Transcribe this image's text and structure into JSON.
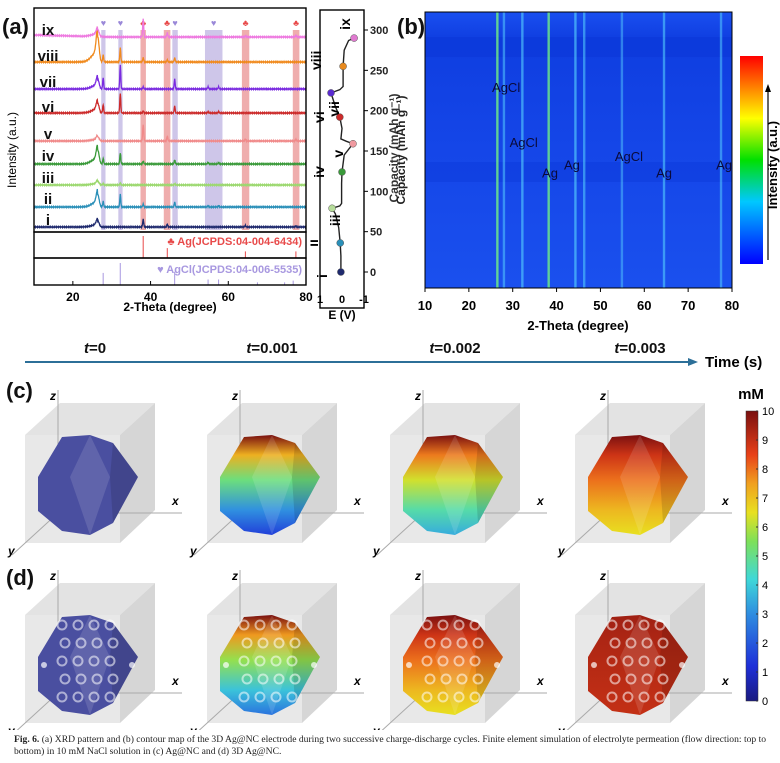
{
  "figure": {
    "panel_labels": {
      "a": "(a)",
      "b": "(b)",
      "c": "(c)",
      "d": "(d)"
    },
    "caption_label": "Fig. 6.",
    "caption_text": "(a) XRD pattern and (b) contour map of the 3D Ag@NC electrode during two successive charge-discharge cycles. Finite element simulation of electrolyte permeation (flow direction: top to bottom) in 10 mM NaCl solution in (c) Ag@NC and (d) 3D Ag@NC."
  },
  "colors": {
    "ag_highlight": "#e88a8a",
    "agcl_highlight": "#b9aee0",
    "timeline": "#2c6f98",
    "contour_bg": "#1544e6"
  },
  "chart_data": [
    {
      "type": "line",
      "panel": "a",
      "title": "",
      "xlabel": "2-Theta (degree)",
      "ylabel": "Intensity (a.u.)",
      "xlim": [
        10,
        80
      ],
      "xticks": [
        20,
        40,
        60,
        80
      ],
      "series": [
        {
          "name": "i",
          "color": "#1f2a6e",
          "peaks": [
            [
              26.4,
              0.45
            ],
            [
              38.1,
              0.55
            ],
            [
              44.3,
              0.2
            ],
            [
              64.4,
              0.1
            ],
            [
              77.4,
              0.08
            ]
          ]
        },
        {
          "name": "ii",
          "color": "#2a8fb8",
          "peaks": [
            [
              26.4,
              0.9
            ],
            [
              27.8,
              0.4
            ],
            [
              32.2,
              0.9
            ],
            [
              38.1,
              0.2
            ],
            [
              46.2,
              0.35
            ],
            [
              54.8,
              0.1
            ],
            [
              57.5,
              0.1
            ]
          ]
        },
        {
          "name": "iii",
          "color": "#9bd86e",
          "peaks": [
            [
              26.4,
              0.25
            ],
            [
              27.8,
              0.1
            ],
            [
              32.2,
              0.15
            ],
            [
              46.2,
              0.1
            ]
          ]
        },
        {
          "name": "iv",
          "color": "#3a9a3a",
          "peaks": [
            [
              26.4,
              1.0
            ],
            [
              27.8,
              0.4
            ],
            [
              32.2,
              0.8
            ],
            [
              38.1,
              0.2
            ],
            [
              46.2,
              0.3
            ],
            [
              54.8,
              0.1
            ],
            [
              57.5,
              0.1
            ]
          ]
        },
        {
          "name": "v",
          "color": "#f08a8a",
          "peaks": [
            [
              26.4,
              0.3
            ],
            [
              38.1,
              1.2
            ],
            [
              44.3,
              0.35
            ],
            [
              64.4,
              0.15
            ],
            [
              77.4,
              0.12
            ]
          ]
        },
        {
          "name": "vi",
          "color": "#cc2b2b",
          "peaks": [
            [
              26.4,
              0.7
            ],
            [
              27.8,
              0.6
            ],
            [
              32.2,
              1.4
            ],
            [
              38.1,
              0.15
            ],
            [
              46.2,
              0.5
            ],
            [
              54.8,
              0.1
            ],
            [
              57.5,
              0.1
            ]
          ]
        },
        {
          "name": "vii",
          "color": "#7a2be0",
          "peaks": [
            [
              26.4,
              0.7
            ],
            [
              27.8,
              0.8
            ],
            [
              32.2,
              1.7
            ],
            [
              38.1,
              0.15
            ],
            [
              46.2,
              0.7
            ],
            [
              54.8,
              0.15
            ],
            [
              57.5,
              0.15
            ]
          ]
        },
        {
          "name": "viii",
          "color": "#f08a1e",
          "peaks": [
            [
              26.4,
              1.8
            ],
            [
              27.8,
              0.5
            ],
            [
              32.2,
              1.0
            ],
            [
              38.1,
              0.3
            ],
            [
              44.3,
              0.15
            ],
            [
              46.2,
              0.3
            ]
          ]
        },
        {
          "name": "ix",
          "color": "#ee7ae0",
          "peaks": [
            [
              26.4,
              0.5
            ],
            [
              38.1,
              1.3
            ],
            [
              44.3,
              0.3
            ],
            [
              64.4,
              0.1
            ],
            [
              77.4,
              0.1
            ]
          ]
        }
      ],
      "highlight_bands": [
        {
          "phase": "AgCl",
          "x": [
            27.3,
            28.4
          ]
        },
        {
          "phase": "AgCl",
          "x": [
            31.7,
            32.8
          ]
        },
        {
          "phase": "Ag",
          "x": [
            37.4,
            38.8
          ]
        },
        {
          "phase": "Ag",
          "x": [
            43.4,
            45.1
          ]
        },
        {
          "phase": "AgCl",
          "x": [
            45.6,
            47.0
          ]
        },
        {
          "phase": "AgCl",
          "x": [
            54.0,
            58.5
          ]
        },
        {
          "phase": "Ag",
          "x": [
            63.5,
            65.4
          ]
        },
        {
          "phase": "Ag",
          "x": [
            76.6,
            78.3
          ]
        }
      ],
      "references": [
        {
          "label": "Ag(JCPDS:04-004-6434)",
          "symbol": "♣",
          "color": "#e84a4a",
          "lines": [
            [
              38.1,
              1.0
            ],
            [
              44.3,
              0.45
            ],
            [
              64.4,
              0.3
            ],
            [
              77.4,
              0.3
            ]
          ]
        },
        {
          "label": "AgCl(JCPDS:04-006-5535)",
          "symbol": "♥",
          "color": "#a898e0",
          "lines": [
            [
              27.8,
              0.55
            ],
            [
              32.2,
              1.0
            ],
            [
              46.2,
              0.6
            ],
            [
              54.8,
              0.25
            ],
            [
              57.5,
              0.25
            ],
            [
              67.5,
              0.12
            ],
            [
              74.5,
              0.12
            ],
            [
              76.7,
              0.2
            ]
          ]
        }
      ]
    },
    {
      "type": "line",
      "panel": "a-right",
      "xlabel": "E (V)",
      "ylabel": "Capacity (mAh g⁻¹)",
      "xlim": [
        1,
        -1
      ],
      "ylim": [
        -20,
        320
      ],
      "xticks": [
        1,
        0,
        -1
      ],
      "yticks": [
        0,
        50,
        100,
        150,
        200,
        250,
        300
      ],
      "curve": [
        [
          0.05,
          0
        ],
        [
          0.05,
          20
        ],
        [
          0.08,
          36
        ],
        [
          0.15,
          55
        ],
        [
          0.3,
          72
        ],
        [
          0.45,
          79
        ],
        [
          0.1,
          82
        ],
        [
          0.02,
          85
        ],
        [
          0.02,
          110
        ],
        [
          0.0,
          124
        ],
        [
          -0.1,
          145
        ],
        [
          -0.5,
          159
        ],
        [
          -0.2,
          162
        ],
        [
          0.05,
          165
        ],
        [
          0.0,
          178
        ],
        [
          0.1,
          192
        ],
        [
          0.3,
          205
        ],
        [
          0.5,
          222
        ],
        [
          0.1,
          226
        ],
        [
          -0.05,
          230
        ],
        [
          -0.05,
          245
        ],
        [
          -0.05,
          255
        ],
        [
          -0.1,
          275
        ],
        [
          -0.3,
          287
        ],
        [
          -0.55,
          290
        ]
      ],
      "points": [
        {
          "label": "i",
          "E": 0.05,
          "capacity": 0,
          "color": "#1f2a6e"
        },
        {
          "label": "ii",
          "E": 0.08,
          "capacity": 36,
          "color": "#2a8fb8"
        },
        {
          "label": "iii",
          "E": 0.45,
          "capacity": 79,
          "color": "#b6dc9a"
        },
        {
          "label": "iv",
          "E": 0.0,
          "capacity": 124,
          "color": "#3a9a3a"
        },
        {
          "label": "v",
          "E": -0.5,
          "capacity": 159,
          "color": "#f09aa0"
        },
        {
          "label": "vi",
          "E": 0.1,
          "capacity": 192,
          "color": "#cc2b2b"
        },
        {
          "label": "vii",
          "E": 0.5,
          "capacity": 222,
          "color": "#5a2bd0"
        },
        {
          "label": "viii",
          "E": -0.05,
          "capacity": 255,
          "color": "#e88a1e"
        },
        {
          "label": "ix",
          "E": -0.55,
          "capacity": 290,
          "color": "#e07ad0"
        }
      ]
    },
    {
      "type": "heatmap",
      "panel": "b",
      "xlabel": "2-Theta (degree)",
      "ylabel": "Capacity (mAh g⁻¹)",
      "xlim": [
        10,
        80
      ],
      "xticks": [
        10,
        20,
        30,
        40,
        50,
        60,
        70,
        80
      ],
      "colorbar_label": "Intensity (a.u.)",
      "lines": [
        {
          "x": 26.5,
          "strength": 0.8
        },
        {
          "x": 28.0,
          "strength": 0.3
        },
        {
          "x": 32.2,
          "strength": 0.45
        },
        {
          "x": 38.2,
          "strength": 0.75
        },
        {
          "x": 44.3,
          "strength": 0.5
        },
        {
          "x": 46.3,
          "strength": 0.35
        },
        {
          "x": 54.9,
          "strength": 0.2
        },
        {
          "x": 64.5,
          "strength": 0.4
        },
        {
          "x": 77.5,
          "strength": 0.3
        }
      ],
      "annotations": [
        {
          "text": "AgCl",
          "x": 28.5,
          "yfrac": 0.29
        },
        {
          "text": "AgCl",
          "x": 32.5,
          "yfrac": 0.49
        },
        {
          "text": "Ag",
          "x": 38.5,
          "yfrac": 0.6
        },
        {
          "text": "Ag",
          "x": 43.5,
          "yfrac": 0.57
        },
        {
          "text": "AgCl",
          "x": 56.5,
          "yfrac": 0.54
        },
        {
          "text": "Ag",
          "x": 64.5,
          "yfrac": 0.6
        },
        {
          "text": "Ag",
          "x": 78.2,
          "yfrac": 0.57
        }
      ]
    },
    {
      "type": "heatmap",
      "panel": "c-d",
      "title": "Finite element simulation",
      "time_axis_label": "Time (s)",
      "times": [
        "0",
        "0.001",
        "0.002",
        "0.003"
      ],
      "axis_labels": {
        "x": "x",
        "y": "y",
        "z": "z"
      },
      "colorbar": {
        "label": "mM",
        "ticks": [
          0,
          1,
          2,
          3,
          4,
          5,
          6,
          7,
          8,
          9,
          10
        ],
        "range": [
          0,
          10
        ]
      },
      "rows": [
        {
          "panel": "c",
          "sample": "Ag@NC",
          "shape": "solid polyhedron",
          "concentration_top_mM": [
            0,
            10,
            10,
            10
          ],
          "concentration_bottom_mM": [
            0,
            1.5,
            3.5,
            6.5
          ]
        },
        {
          "panel": "d",
          "sample": "3D Ag@NC",
          "shape": "porous polyhedron",
          "concentration_top_mM": [
            0,
            10,
            10,
            9.5
          ],
          "concentration_bottom_mM": [
            0,
            2.5,
            6.5,
            9.0
          ]
        }
      ]
    }
  ]
}
